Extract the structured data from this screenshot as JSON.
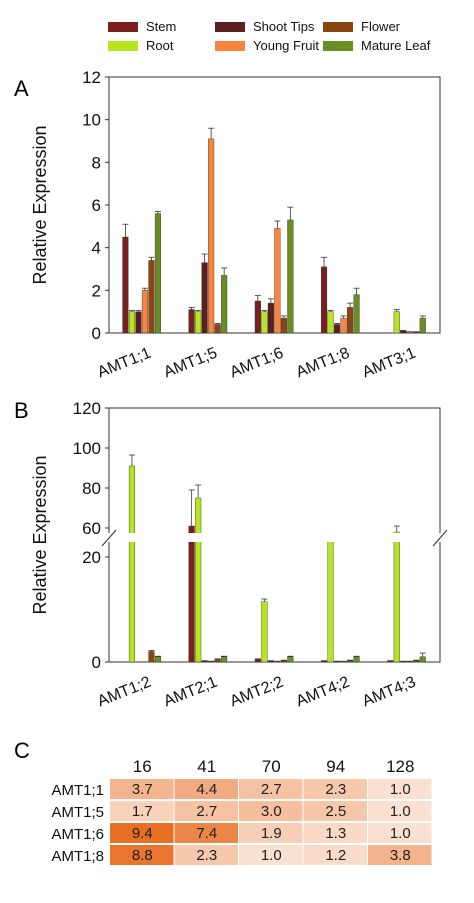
{
  "legend": [
    {
      "name": "Stem",
      "color": "#7B1E1E"
    },
    {
      "name": "Root",
      "color": "#B5E61D"
    },
    {
      "name": "Shoot Tips",
      "color": "#5C1F1F"
    },
    {
      "name": "Young Fruit",
      "color": "#F5853F"
    },
    {
      "name": "Flower",
      "color": "#8B4513"
    },
    {
      "name": "Mature Leaf",
      "color": "#6B8E23"
    }
  ],
  "chart_data": [
    {
      "panel": "A",
      "type": "bar",
      "ylabel": "Relative Expression",
      "ylim": [
        0,
        12
      ],
      "yticks": [
        "0",
        "2",
        "4",
        "6",
        "8",
        "10",
        "12"
      ],
      "categories": [
        "AMT1;1",
        "AMT1;5",
        "AMT1;6",
        "AMT1;8",
        "AMT3;1"
      ],
      "series": [
        {
          "name": "Stem",
          "values": [
            4.5,
            1.1,
            1.5,
            3.1,
            0.0
          ],
          "errors": [
            0.6,
            0.1,
            0.25,
            0.45,
            0
          ]
        },
        {
          "name": "Root",
          "values": [
            1.0,
            1.0,
            1.0,
            1.0,
            1.0
          ],
          "errors": [
            0.05,
            0.05,
            0.05,
            0.05,
            0.1
          ]
        },
        {
          "name": "Shoot Tips",
          "values": [
            1.0,
            3.3,
            1.4,
            0.4,
            0.1
          ],
          "errors": [
            0.05,
            0.4,
            0.2,
            0.05,
            0.02
          ]
        },
        {
          "name": "Young Fruit",
          "values": [
            2.0,
            9.1,
            4.9,
            0.7,
            0.05
          ],
          "errors": [
            0.1,
            0.5,
            0.35,
            0.1,
            0.01
          ]
        },
        {
          "name": "Flower",
          "values": [
            3.4,
            0.4,
            0.7,
            1.2,
            0.05
          ],
          "errors": [
            0.15,
            0.05,
            0.1,
            0.2,
            0.01
          ]
        },
        {
          "name": "Mature Leaf",
          "values": [
            5.6,
            2.7,
            5.3,
            1.8,
            0.7
          ],
          "errors": [
            0.1,
            0.35,
            0.6,
            0.3,
            0.1
          ]
        }
      ]
    },
    {
      "panel": "B",
      "type": "bar",
      "ylabel": "Relative Expression",
      "yticks": [
        "0",
        "20",
        "60",
        "80",
        "100",
        "120"
      ],
      "axis_break": [
        20,
        55
      ],
      "categories": [
        "AMT1;2",
        "AMT2;1",
        "AMT2;2",
        "AMT4;2",
        "AMT4;3"
      ],
      "series": [
        {
          "name": "Stem",
          "values": [
            0.0,
            61.0,
            0.5,
            0.2,
            0.2
          ],
          "errors": [
            0,
            18,
            0.1,
            0.05,
            0.05
          ]
        },
        {
          "name": "Root",
          "values": [
            91.0,
            75.0,
            11.5,
            54.0,
            58.0
          ],
          "errors": [
            5.5,
            6.5,
            0.5,
            3.0,
            3.0
          ]
        },
        {
          "name": "Shoot Tips",
          "values": [
            0.0,
            0.2,
            0.2,
            0.1,
            0.1
          ],
          "errors": [
            0,
            0.05,
            0.05,
            0.05,
            0.05
          ]
        },
        {
          "name": "Young Fruit",
          "values": [
            0.0,
            0.1,
            0.1,
            0.1,
            0.1
          ],
          "errors": [
            0,
            0.05,
            0.05,
            0.05,
            0.05
          ]
        },
        {
          "name": "Flower",
          "values": [
            2.0,
            0.5,
            0.3,
            0.3,
            0.3
          ],
          "errors": [
            0.2,
            0.1,
            0.05,
            0.05,
            0.05
          ]
        },
        {
          "name": "Mature Leaf",
          "values": [
            1.0,
            1.0,
            1.0,
            1.0,
            1.0
          ],
          "errors": [
            0.1,
            0.1,
            0.1,
            0.1,
            0.7
          ]
        }
      ]
    },
    {
      "panel": "C",
      "type": "heatmap",
      "columns": [
        "16",
        "41",
        "70",
        "94",
        "128"
      ],
      "rows": [
        "AMT1;1",
        "AMT1;5",
        "AMT1;6",
        "AMT1;8"
      ],
      "values": [
        [
          "3.7",
          "4.4",
          "2.7",
          "2.3",
          "1.0"
        ],
        [
          "1.7",
          "2.7",
          "3.0",
          "2.5",
          "1.0"
        ],
        [
          "9.4",
          "7.4",
          "1.9",
          "1.3",
          "1.0"
        ],
        [
          "8.8",
          "2.3",
          "1.0",
          "1.2",
          "3.8"
        ]
      ]
    }
  ],
  "panels": {
    "a": "A",
    "b": "B",
    "c": "C"
  }
}
